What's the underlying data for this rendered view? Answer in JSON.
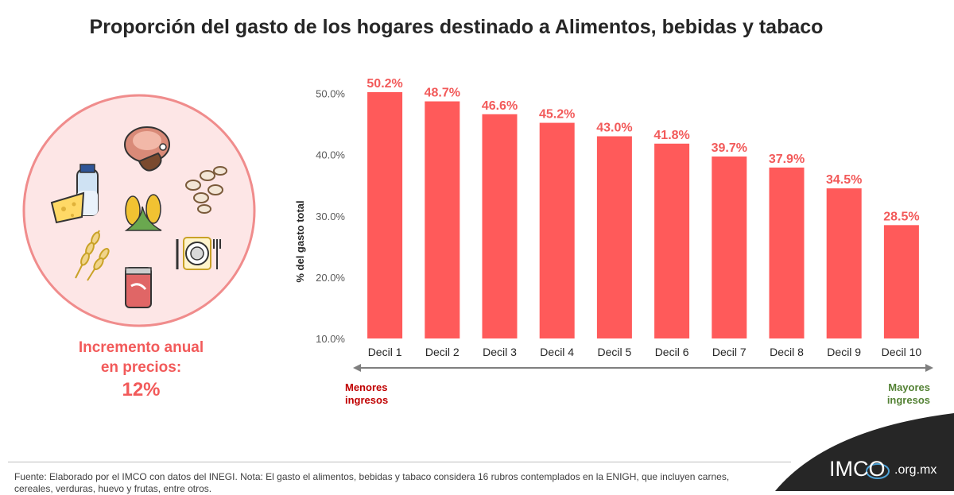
{
  "title": "Proporción del gasto de los hogares destinado a Alimentos, bebidas y tabaco",
  "side_panel": {
    "label_line1": "Incremento anual",
    "label_line2": "en precios:",
    "value": "12%",
    "icons": [
      "ham-icon",
      "milk-bottle-icon",
      "cheese-icon",
      "beans-icon",
      "corn-icon",
      "wheat-icon",
      "plate-cutlery-icon",
      "soda-can-icon"
    ]
  },
  "axis_notes": {
    "low_line1": "Menores",
    "low_line2": "ingresos",
    "high_line1": "Mayores",
    "high_line2": "ingresos"
  },
  "footer": "Fuente: Elaborado por el IMCO con datos del INEGI. Nota: El gasto el alimentos, bebidas y tabaco considera 16 rubros contemplados en la ENIGH, que incluyen carnes, cereales, verduras, huevo y frutas, entre otros.",
  "logo": {
    "brand": "IMCO",
    "domain": ".org.mx"
  },
  "colors": {
    "bar": "#ff5a5a",
    "label": "#f25a5a",
    "low": "#c00000",
    "high": "#548235"
  },
  "chart_data": {
    "type": "bar",
    "categories": [
      "Decil 1",
      "Decil 2",
      "Decil 3",
      "Decil 4",
      "Decil 5",
      "Decil 6",
      "Decil 7",
      "Decil 8",
      "Decil 9",
      "Decil 10"
    ],
    "values": [
      50.2,
      48.7,
      46.6,
      45.2,
      43.0,
      41.8,
      39.7,
      37.9,
      34.5,
      28.5
    ],
    "value_labels": [
      "50.2%",
      "48.7%",
      "46.6%",
      "45.2%",
      "43.0%",
      "41.8%",
      "39.7%",
      "37.9%",
      "34.5%",
      "28.5%"
    ],
    "ylabel": "% del gasto total",
    "yticks": [
      10,
      20,
      30,
      40,
      50
    ],
    "ytick_labels": [
      "10.0%",
      "20.0%",
      "30.0%",
      "40.0%",
      "50.0%"
    ],
    "ylim": [
      10,
      50.2
    ],
    "grid": false
  }
}
